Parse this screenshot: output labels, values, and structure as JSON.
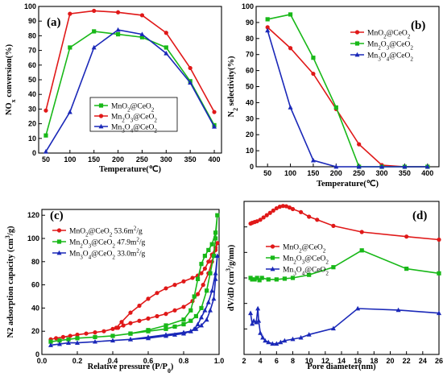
{
  "chart_data": [
    {
      "panel": "(a)",
      "type": "line",
      "xlabel": "Temperature(℃)",
      "ylabel": "NOx conversion(%)",
      "xlim": [
        35,
        415
      ],
      "ylim": [
        0,
        100
      ],
      "xticks": [
        50,
        100,
        150,
        200,
        250,
        300,
        350,
        400
      ],
      "yticks": [
        0,
        10,
        20,
        30,
        40,
        50,
        60,
        70,
        80,
        90,
        100
      ],
      "legend_position": "lower-left",
      "series": [
        {
          "name": "MnO2@CeO2",
          "color": "#18b818",
          "marker": "square",
          "x": [
            50,
            100,
            150,
            200,
            250,
            300,
            350,
            400
          ],
          "y": [
            12,
            72,
            83,
            81,
            79,
            72,
            49,
            19
          ]
        },
        {
          "name": "Mn2O3@CeO2",
          "color": "#e01818",
          "marker": "circle",
          "x": [
            50,
            100,
            150,
            200,
            250,
            300,
            350,
            400
          ],
          "y": [
            29,
            95,
            97,
            96,
            94,
            82,
            58,
            28
          ]
        },
        {
          "name": "Mn3O4@CeO2",
          "color": "#1a28b8",
          "marker": "triangle",
          "x": [
            50,
            100,
            150,
            200,
            250,
            300,
            350,
            400
          ],
          "y": [
            1,
            28,
            72,
            84,
            81,
            68,
            48,
            18
          ]
        }
      ]
    },
    {
      "panel": "(b)",
      "type": "line",
      "xlabel": "Temperature(℃)",
      "ylabel": "N2 selectivity(%)",
      "xlim": [
        25,
        425
      ],
      "ylim": [
        0,
        100
      ],
      "xticks": [
        50,
        100,
        150,
        200,
        250,
        300,
        350,
        400
      ],
      "yticks": [
        0,
        10,
        20,
        30,
        40,
        50,
        60,
        70,
        80,
        90,
        100
      ],
      "legend_position": "right",
      "series": [
        {
          "name": "MnO2@CeO2",
          "color": "#e01818",
          "marker": "circle",
          "x": [
            50,
            100,
            150,
            200,
            250,
            300,
            350,
            400
          ],
          "y": [
            87,
            74,
            58,
            36,
            14,
            1,
            0,
            0
          ]
        },
        {
          "name": "Mn2O3@CeO2",
          "color": "#18b818",
          "marker": "square",
          "x": [
            50,
            100,
            150,
            200,
            250,
            300,
            350,
            400
          ],
          "y": [
            92,
            95,
            68,
            37,
            0,
            0,
            0,
            0
          ]
        },
        {
          "name": "Mn3O4@CeO2",
          "color": "#1a28b8",
          "marker": "triangle",
          "x": [
            50,
            100,
            150,
            200,
            250,
            300,
            350,
            400
          ],
          "y": [
            85,
            37,
            4,
            0,
            0,
            0,
            0,
            0
          ]
        }
      ]
    },
    {
      "panel": "(c)",
      "type": "line",
      "xlabel": "Relative pressure (P/P0)",
      "ylabel": "N2 adsorption capacity (cm3/g)",
      "xlim": [
        0,
        1
      ],
      "ylim": [
        0,
        125
      ],
      "xticks": [
        0.0,
        0.2,
        0.4,
        0.6,
        0.8,
        1.0
      ],
      "xtick_labels": [
        "0.0",
        "0.2",
        "0.4",
        "0.6",
        "0.8",
        "1.0"
      ],
      "yticks": [
        0,
        20,
        40,
        60,
        80,
        100,
        120
      ],
      "legend_position": "top-left",
      "series": [
        {
          "name": "MnO2@CeO2",
          "surface_area": "53.6m2/g",
          "color": "#e01818",
          "marker": "circle",
          "x": [
            0.05,
            0.08,
            0.12,
            0.16,
            0.2,
            0.25,
            0.3,
            0.35,
            0.4,
            0.43,
            0.46,
            0.5,
            0.55,
            0.6,
            0.65,
            0.7,
            0.75,
            0.8,
            0.85,
            0.88,
            0.91,
            0.94,
            0.96,
            0.98,
            0.99,
            0.98,
            0.96,
            0.94,
            0.92,
            0.9,
            0.88,
            0.85,
            0.8,
            0.75,
            0.7,
            0.65,
            0.6,
            0.55,
            0.5,
            0.45,
            0.42
          ],
          "y": [
            13,
            14,
            15,
            16,
            17,
            18,
            19,
            20,
            22,
            23,
            25,
            27,
            29,
            31,
            33,
            35,
            38,
            41,
            46,
            52,
            60,
            70,
            80,
            90,
            96,
            92,
            86,
            80,
            74,
            70,
            68,
            66,
            63,
            60,
            57,
            53,
            48,
            42,
            36,
            28,
            23
          ]
        },
        {
          "name": "Mn2O3@CeO2",
          "surface_area": "47.9m2/g",
          "color": "#18b818",
          "marker": "square",
          "x": [
            0.05,
            0.1,
            0.15,
            0.2,
            0.3,
            0.4,
            0.5,
            0.6,
            0.7,
            0.75,
            0.8,
            0.84,
            0.87,
            0.9,
            0.93,
            0.95,
            0.97,
            0.98,
            0.99,
            0.98,
            0.96,
            0.94,
            0.92,
            0.9,
            0.88,
            0.86,
            0.84,
            0.8,
            0.7,
            0.6,
            0.5
          ],
          "y": [
            11,
            12,
            13,
            14,
            15,
            16,
            18,
            20,
            22,
            24,
            26,
            29,
            33,
            40,
            55,
            70,
            85,
            100,
            120,
            105,
            95,
            90,
            85,
            78,
            65,
            50,
            38,
            30,
            25,
            21,
            18
          ]
        },
        {
          "name": "Mn3O4@CeO2",
          "surface_area": "33.0m2/g",
          "color": "#1a28b8",
          "marker": "triangle",
          "x": [
            0.05,
            0.1,
            0.15,
            0.2,
            0.3,
            0.4,
            0.5,
            0.6,
            0.7,
            0.75,
            0.8,
            0.84,
            0.87,
            0.9,
            0.93,
            0.95,
            0.97,
            0.98,
            0.99,
            0.98,
            0.96,
            0.94,
            0.92,
            0.9,
            0.88,
            0.86,
            0.84,
            0.8,
            0.7,
            0.6,
            0.5
          ],
          "y": [
            8,
            9,
            10,
            10,
            11,
            12,
            13,
            14,
            16,
            17,
            18,
            20,
            22,
            25,
            30,
            38,
            48,
            65,
            85,
            70,
            55,
            45,
            38,
            32,
            26,
            22,
            20,
            19,
            17,
            15,
            13
          ]
        }
      ]
    },
    {
      "panel": "(d)",
      "type": "line",
      "xlabel": "Pore diameter(nm)",
      "ylabel": "dV/dD (cm3/g/nm)",
      "xlim": [
        2,
        26
      ],
      "xticks": [
        2,
        4,
        6,
        8,
        10,
        12,
        14,
        16,
        18,
        20,
        22,
        24,
        26
      ],
      "yticks_labeled": false,
      "legend_position": "top-left",
      "series": [
        {
          "name": "MnO2@CeO2",
          "color": "#e01818",
          "marker": "circle",
          "x": [
            2.8,
            3.0,
            3.3,
            3.6,
            4.0,
            4.4,
            4.8,
            5.2,
            5.6,
            6.0,
            6.4,
            6.8,
            7.2,
            7.6,
            8.0,
            9.0,
            10.0,
            11.0,
            13.0,
            16.5,
            22.0,
            26.0
          ],
          "y": [
            0.855,
            0.86,
            0.865,
            0.87,
            0.88,
            0.895,
            0.91,
            0.925,
            0.94,
            0.955,
            0.965,
            0.97,
            0.968,
            0.96,
            0.95,
            0.93,
            0.9,
            0.88,
            0.84,
            0.8,
            0.77,
            0.75
          ]
        },
        {
          "name": "Mn2O3@CeO2",
          "color": "#18b818",
          "marker": "square",
          "x": [
            2.8,
            3.0,
            3.3,
            3.6,
            3.9,
            4.2,
            5.0,
            6.0,
            7.0,
            8.0,
            10.0,
            13.0,
            16.5,
            22.0,
            26.0
          ],
          "y": [
            0.5,
            0.49,
            0.49,
            0.5,
            0.485,
            0.5,
            0.49,
            0.49,
            0.495,
            0.5,
            0.52,
            0.57,
            0.68,
            0.56,
            0.53
          ]
        },
        {
          "name": "Mn3O4@CeO2",
          "color": "#1a28b8",
          "marker": "triangle",
          "x": [
            2.8,
            3.0,
            3.2,
            3.5,
            3.7,
            3.8,
            4.0,
            4.3,
            4.6,
            5.0,
            5.5,
            6.0,
            6.5,
            7.0,
            8.0,
            9.0,
            10.0,
            13.0,
            16.0,
            21.0,
            26.0
          ],
          "y": [
            0.27,
            0.2,
            0.22,
            0.21,
            0.3,
            0.22,
            0.14,
            0.11,
            0.09,
            0.08,
            0.07,
            0.07,
            0.08,
            0.09,
            0.1,
            0.11,
            0.13,
            0.17,
            0.3,
            0.29,
            0.27
          ]
        }
      ]
    }
  ]
}
